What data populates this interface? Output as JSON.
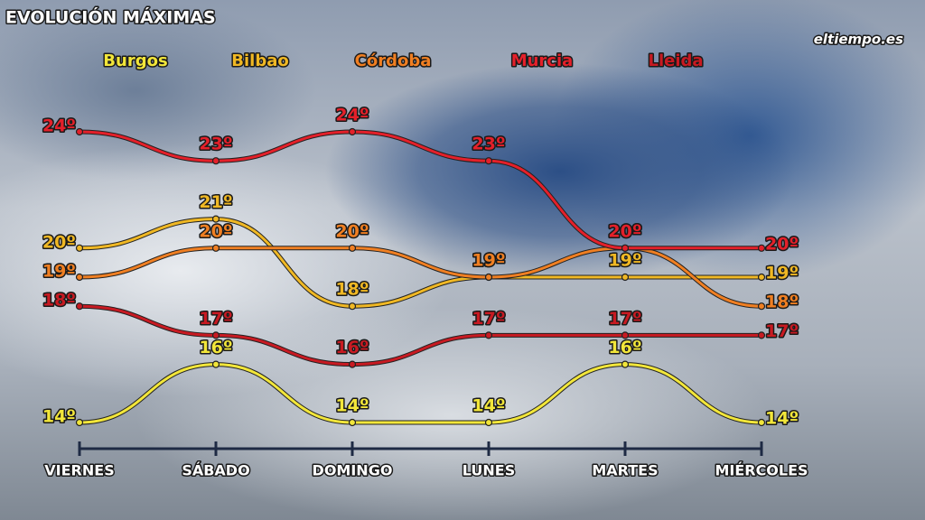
{
  "chart_data": {
    "type": "line",
    "title": "EVOLUCIÓN MÁXIMAS",
    "logo": "eltiempo.es",
    "categories": [
      "VIERNES",
      "SÁBADO",
      "DOMINGO",
      "LUNES",
      "MARTES",
      "MIÉRCOLES"
    ],
    "series": [
      {
        "name": "Burgos",
        "color": "#f2e63a",
        "values": [
          14,
          16,
          14,
          14,
          16,
          14
        ],
        "value_labels": [
          "14º",
          "16º",
          "14º",
          "14º",
          "16º",
          "14º"
        ]
      },
      {
        "name": "Bilbao",
        "color": "#f0b824",
        "values": [
          20,
          21,
          18,
          19,
          19,
          19
        ],
        "value_labels": [
          "20º",
          "21º",
          "18º",
          "19º",
          "19º",
          "19º"
        ]
      },
      {
        "name": "Córdoba",
        "color": "#f07f22",
        "values": [
          19,
          20,
          20,
          19,
          20,
          18
        ],
        "value_labels": [
          "19º",
          "20º",
          "20º",
          "19º",
          "20º",
          "18º"
        ]
      },
      {
        "name": "Murcia",
        "color": "#e4202a",
        "values": [
          24,
          23,
          24,
          23,
          20,
          20
        ],
        "value_labels": [
          "24º",
          "23º",
          "24º",
          "23º",
          "20º",
          "20º"
        ]
      },
      {
        "name": "Lleida",
        "color": "#c81a22",
        "values": [
          18,
          17,
          16,
          17,
          17,
          17
        ],
        "value_labels": [
          "18º",
          "17º",
          "16º",
          "17º",
          "17º",
          "17º"
        ]
      }
    ]
  }
}
